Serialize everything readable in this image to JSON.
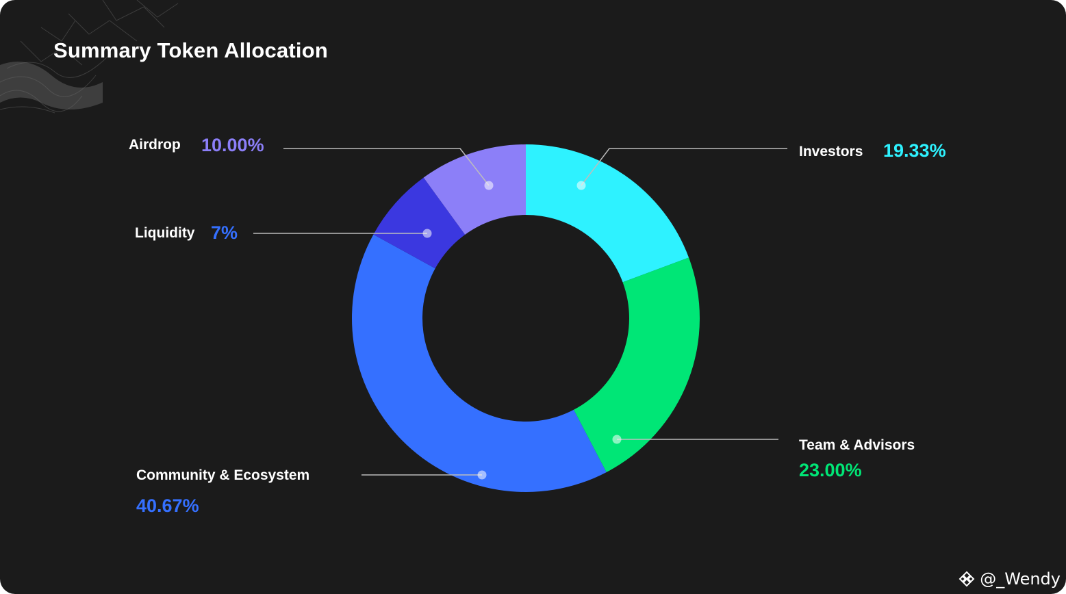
{
  "title": "Summary Token Allocation",
  "chart_data": {
    "type": "pie",
    "style": "donut",
    "title": "Summary Token Allocation",
    "categories": [
      "Investors",
      "Team & Advisors",
      "Community & Ecosystem",
      "Liquidity",
      "Airdrop"
    ],
    "values": [
      19.33,
      23.0,
      40.67,
      7,
      10.0
    ],
    "value_labels": [
      "19.33%",
      "23.00%",
      "40.67%",
      "7%",
      "10.00%"
    ],
    "colors": [
      "#2ef2ff",
      "#00e676",
      "#3570ff",
      "#3b38e0",
      "#8c7ff8"
    ]
  },
  "watermark": "@_Wendy"
}
